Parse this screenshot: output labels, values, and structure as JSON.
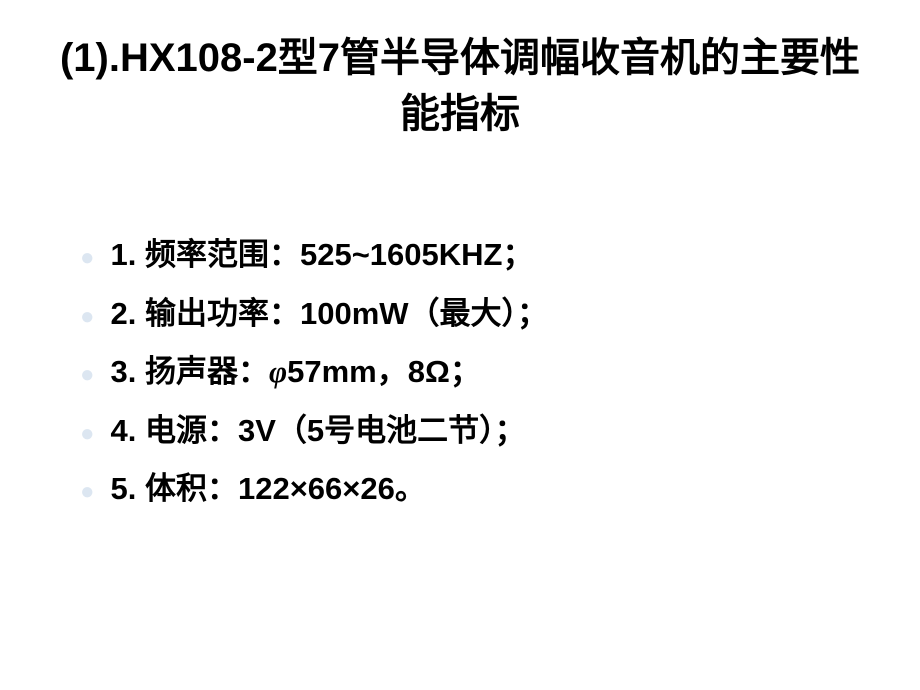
{
  "slide": {
    "title": "(1).HX108-2型7管半导体调幅收音机的主要性能指标",
    "title_color": "#000000",
    "title_fontsize": 40,
    "bullet_color": "#dce6f1",
    "text_color": "#000000",
    "text_fontsize": 31,
    "background_color": "#ffffff",
    "items": [
      {
        "prefix": "1. 频率范围：",
        "value": "525~1605KHZ",
        "suffix": "；"
      },
      {
        "prefix": "2. 输出功率：",
        "value": "100mW",
        "suffix": "（最大）；"
      },
      {
        "prefix": "3. 扬声器：",
        "italic": "φ",
        "value": "57mm，8Ω",
        "suffix": "；"
      },
      {
        "prefix": "4. 电源：",
        "value": "3V",
        "suffix": "（5号电池二节）；"
      },
      {
        "prefix": "5. 体积：",
        "value": "122×66×26",
        "suffix": "。"
      }
    ]
  }
}
